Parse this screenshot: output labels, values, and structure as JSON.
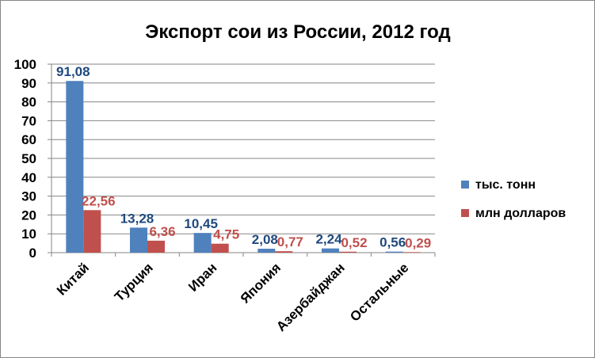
{
  "colors": {
    "series1": "#4F81BD",
    "series1_label": "#1F497D",
    "series2": "#C0504D",
    "series2_label": "#C0504D",
    "grid": "#868686"
  },
  "chart_data": {
    "type": "bar",
    "title": "Экспорт сои из России, 2012 год",
    "xlabel": "",
    "ylabel": "",
    "ylim": [
      0,
      100
    ],
    "yticks": [
      "0",
      "10",
      "20",
      "30",
      "40",
      "50",
      "60",
      "70",
      "80",
      "90",
      "100"
    ],
    "grid": true,
    "legend_position": "right",
    "categories": [
      "Китай",
      "Турция",
      "Иран",
      "Япония",
      "Азербайджан",
      "Остальные"
    ],
    "series": [
      {
        "name": "тыс. тонн",
        "values": [
          91.08,
          13.28,
          10.45,
          2.08,
          2.24,
          0.56
        ],
        "labels": [
          "91,08",
          "13,28",
          "10,45",
          "2,08",
          "2,24",
          "0,56"
        ]
      },
      {
        "name": "млн долларов",
        "values": [
          22.56,
          6.36,
          4.75,
          0.77,
          0.52,
          0.29
        ],
        "labels": [
          "22,56",
          "6,36",
          "4,75",
          "0,77",
          "0,52",
          "0,29"
        ]
      }
    ]
  }
}
